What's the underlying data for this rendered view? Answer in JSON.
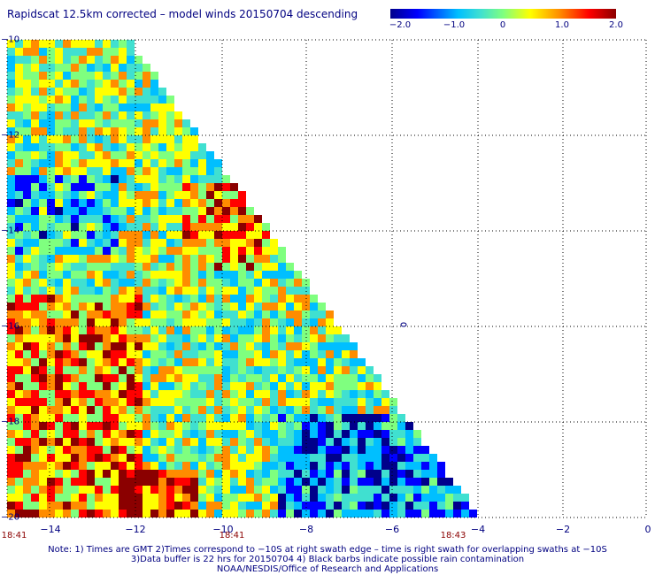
{
  "title": "Rapidscat 12.5km corrected – model winds 20150704 descending",
  "colorbar": {
    "ticks": [
      "−2.0",
      "−1.0",
      "0",
      "1.0",
      "2.0"
    ],
    "colors": [
      "#00008b",
      "#0000ff",
      "#00bfff",
      "#40e0d0",
      "#7fff7f",
      "#ffff00",
      "#ff8c00",
      "#ff0000",
      "#8b0000"
    ]
  },
  "map": {
    "x_ticks": [
      "−14",
      "−12",
      "−10",
      "−8",
      "−6",
      "−4",
      "−2",
      "0"
    ],
    "y_ticks": [
      "−10",
      "−12",
      "−14",
      "−16",
      "−18",
      "−20"
    ],
    "x_range": [
      -15,
      0
    ],
    "y_range": [
      -20,
      -10
    ],
    "grid": true,
    "swath_edge": "diagonal from lat −11 at lon −12 to lat −20 at lon −4"
  },
  "times": [
    "18:41",
    "18:41",
    "18:43"
  ],
  "notes": [
    "Note: 1) Times are GMT 2)Times correspond to −10S at right swath edge – time is right swath for overlapping swaths at −10S",
    "3)Data buffer is 22 hrs for 20150704 4) Black barbs indicate possible rain contamination",
    "NOAA/NESDIS/Office of Research and Applications"
  ]
}
